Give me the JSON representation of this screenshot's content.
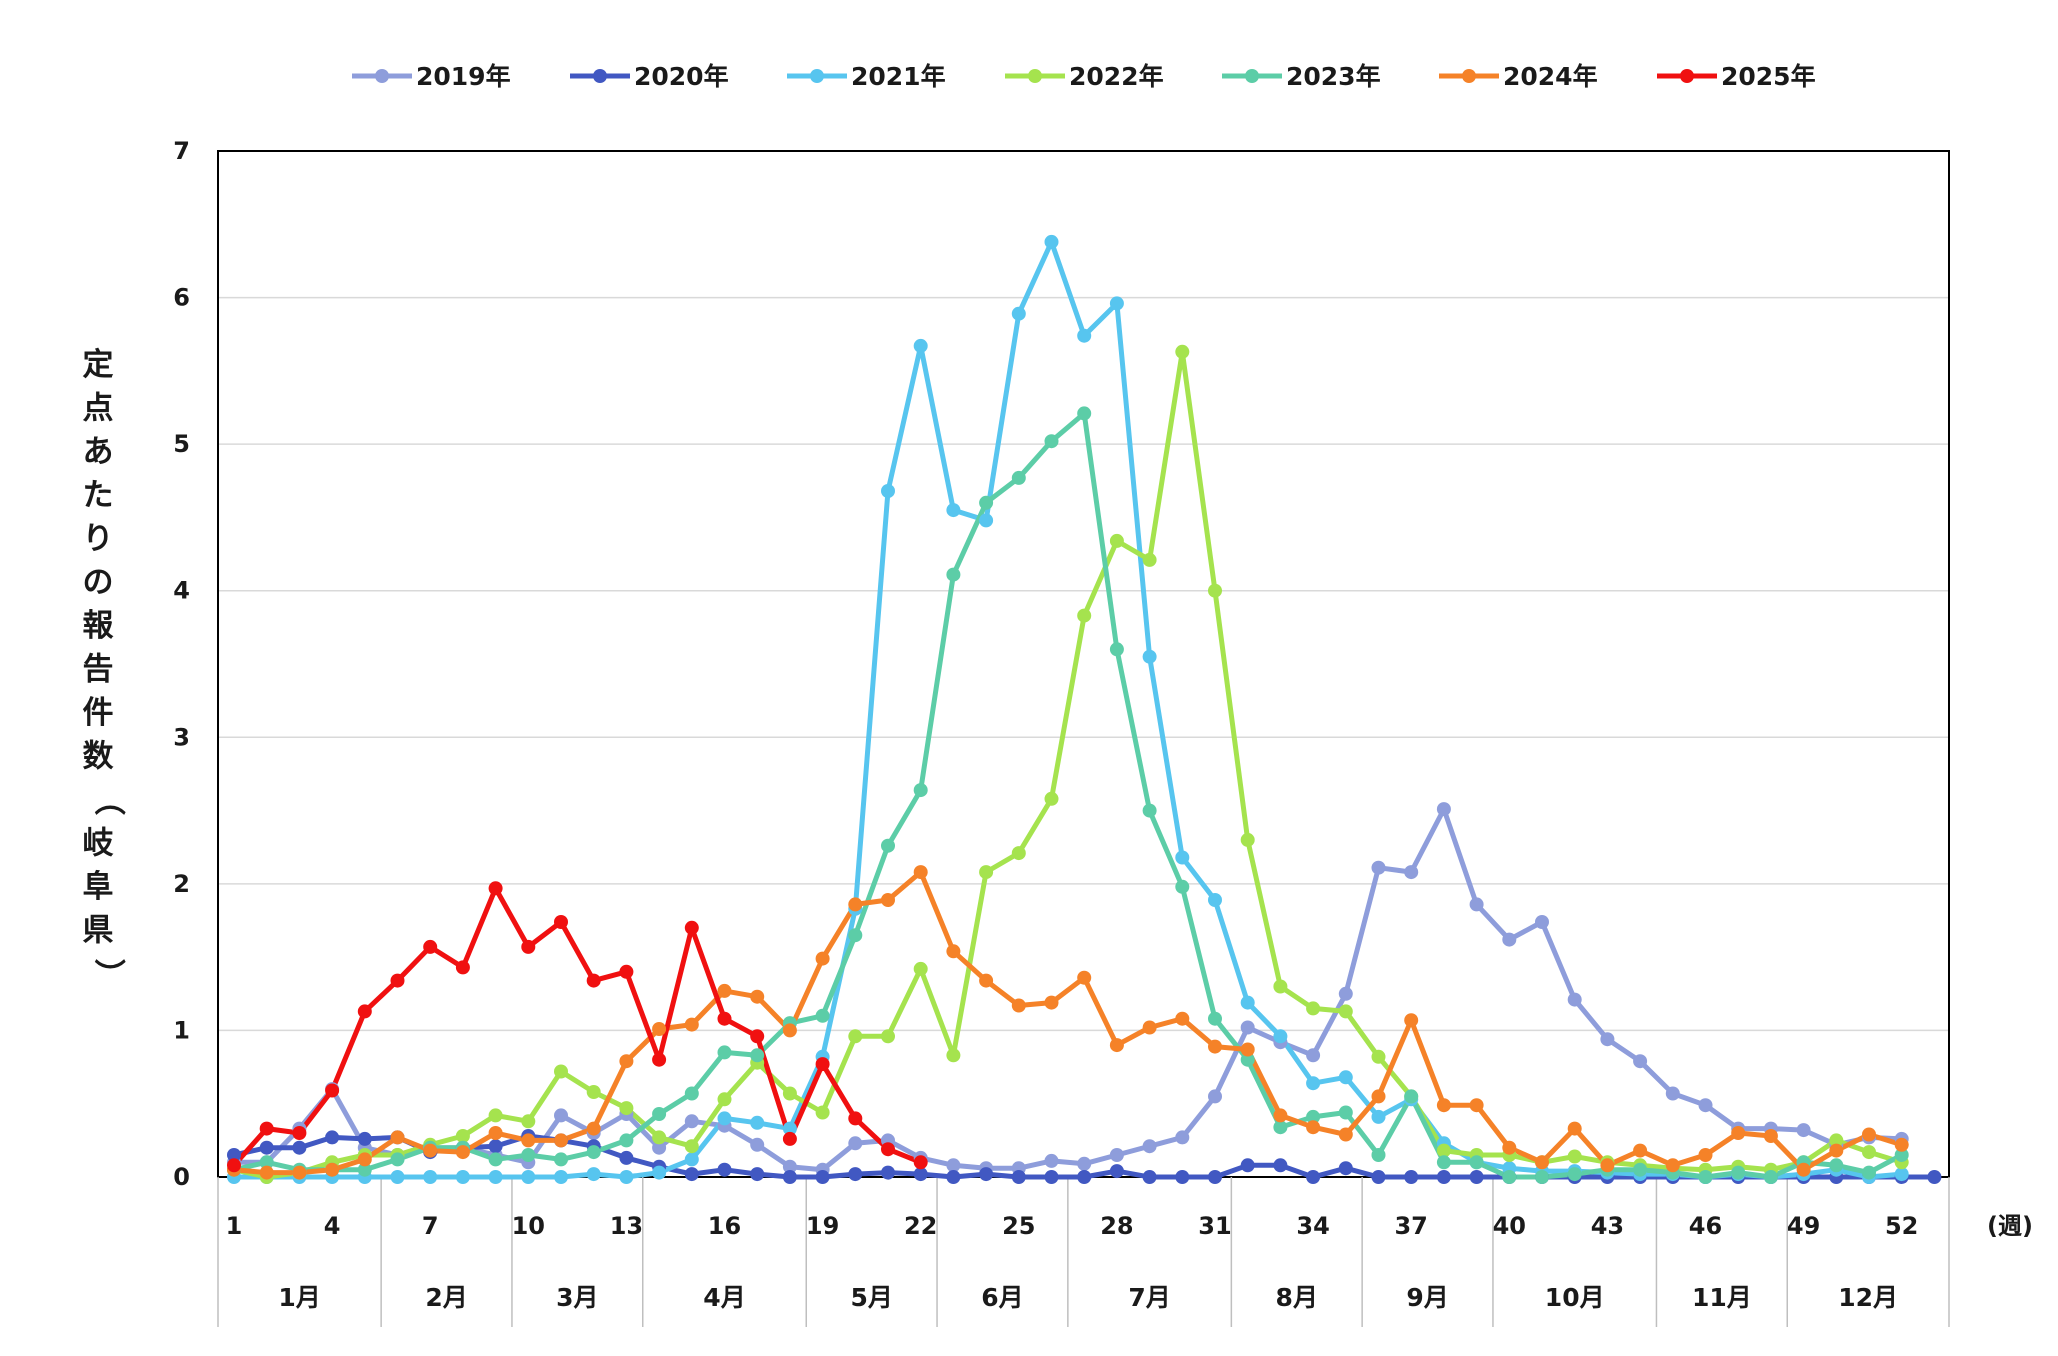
{
  "chart_data": {
    "type": "line",
    "title": "",
    "xlabel": "(週)",
    "ylabel": "定点あたりの報告件数（岐阜県）",
    "ylim": [
      0,
      7
    ],
    "yticks": [
      "0",
      "1",
      "2",
      "3",
      "4",
      "5",
      "6",
      "7"
    ],
    "xticks": [
      "1",
      "4",
      "7",
      "10",
      "13",
      "16",
      "19",
      "22",
      "25",
      "28",
      "31",
      "34",
      "37",
      "40",
      "43",
      "46",
      "49",
      "52"
    ],
    "grid": true,
    "legend_position": "top",
    "months": [
      {
        "label": "1月",
        "start": 1,
        "end": 5
      },
      {
        "label": "2月",
        "start": 6,
        "end": 9
      },
      {
        "label": "3月",
        "start": 10,
        "end": 13
      },
      {
        "label": "4月",
        "start": 14,
        "end": 18
      },
      {
        "label": "5月",
        "start": 19,
        "end": 22
      },
      {
        "label": "6月",
        "start": 23,
        "end": 26
      },
      {
        "label": "7月",
        "start": 27,
        "end": 31
      },
      {
        "label": "8月",
        "start": 32,
        "end": 35
      },
      {
        "label": "9月",
        "start": 36,
        "end": 39
      },
      {
        "label": "10月",
        "start": 40,
        "end": 44
      },
      {
        "label": "11月",
        "start": 45,
        "end": 48
      },
      {
        "label": "12月",
        "start": 49,
        "end": 53
      }
    ],
    "series": [
      {
        "name": "2019年",
        "color": "#8e9ddb",
        "x_start": 1,
        "values": [
          0.1,
          0.1,
          0.33,
          0.6,
          0.2,
          0.15,
          0.2,
          0.2,
          0.15,
          0.1,
          0.42,
          0.3,
          0.43,
          0.2,
          0.38,
          0.35,
          0.22,
          0.07,
          0.05,
          0.23,
          0.25,
          0.13,
          0.08,
          0.06,
          0.06,
          0.11,
          0.09,
          0.15,
          0.21,
          0.27,
          0.55,
          1.02,
          0.92,
          0.83,
          1.25,
          2.11,
          2.08,
          2.51,
          1.86,
          1.62,
          1.74,
          1.21,
          0.94,
          0.79,
          0.57,
          0.49,
          0.33,
          0.33,
          0.32,
          0.22,
          0.27,
          0.26
        ]
      },
      {
        "name": "2020年",
        "color": "#4158c2",
        "x_start": 1,
        "values": [
          0.15,
          0.2,
          0.2,
          0.27,
          0.26,
          0.27,
          0.17,
          0.2,
          0.21,
          0.28,
          0.25,
          0.21,
          0.13,
          0.07,
          0.02,
          0.05,
          0.02,
          0.0,
          0.0,
          0.02,
          0.03,
          0.02,
          0.0,
          0.02,
          0.0,
          0.0,
          0.0,
          0.04,
          0.0,
          0.0,
          0.0,
          0.08,
          0.08,
          0.0,
          0.06,
          0.0,
          0.0,
          0.0,
          0.0,
          0.0,
          0.0,
          0.0,
          0.0,
          0.0,
          0.0,
          0.0,
          0.0,
          0.0,
          0.0,
          0.0,
          0.0,
          0.0,
          0.0
        ]
      },
      {
        "name": "2021年",
        "color": "#57c5ef",
        "x_start": 1,
        "values": [
          0.0,
          0.0,
          0.0,
          0.0,
          0.0,
          0.0,
          0.0,
          0.0,
          0.0,
          0.0,
          0.0,
          0.02,
          0.0,
          0.03,
          0.12,
          0.4,
          0.37,
          0.33,
          0.82,
          1.83,
          4.68,
          5.67,
          4.55,
          4.48,
          5.89,
          6.38,
          5.74,
          5.96,
          3.55,
          2.18,
          1.89,
          1.19,
          0.96,
          0.64,
          0.68,
          0.41,
          0.53,
          0.23,
          0.1,
          0.06,
          0.04,
          0.04,
          0.03,
          0.02,
          0.02,
          0.0,
          0.02,
          0.0,
          0.02,
          0.05,
          0.0,
          0.02
        ]
      },
      {
        "name": "2022年",
        "color": "#a5e34e",
        "x_start": 1,
        "values": [
          0.05,
          0.0,
          0.03,
          0.1,
          0.15,
          0.15,
          0.22,
          0.28,
          0.42,
          0.38,
          0.72,
          0.58,
          0.47,
          0.27,
          0.21,
          0.53,
          0.78,
          0.57,
          0.44,
          0.96,
          0.96,
          1.42,
          0.83,
          2.08,
          2.21,
          2.58,
          3.83,
          4.34,
          4.21,
          5.63,
          4.0,
          2.3,
          1.3,
          1.15,
          1.13,
          0.82,
          0.55,
          0.18,
          0.15,
          0.15,
          0.1,
          0.14,
          0.1,
          0.08,
          0.06,
          0.05,
          0.07,
          0.05,
          0.1,
          0.25,
          0.17,
          0.1
        ]
      },
      {
        "name": "2023年",
        "color": "#5ccda7",
        "x_start": 1,
        "values": [
          0.05,
          0.1,
          0.05,
          0.05,
          0.05,
          0.12,
          0.2,
          0.2,
          0.12,
          0.15,
          0.12,
          0.17,
          0.25,
          0.43,
          0.57,
          0.85,
          0.83,
          1.05,
          1.1,
          1.65,
          2.26,
          2.64,
          4.11,
          4.6,
          4.77,
          5.02,
          5.21,
          3.6,
          2.5,
          1.98,
          1.08,
          0.8,
          0.34,
          0.41,
          0.44,
          0.15,
          0.55,
          0.1,
          0.1,
          0.0,
          0.0,
          0.02,
          0.05,
          0.05,
          0.03,
          0.0,
          0.03,
          0.0,
          0.1,
          0.08,
          0.03,
          0.15
        ]
      },
      {
        "name": "2024年",
        "color": "#f58228",
        "x_start": 1,
        "values": [
          0.05,
          0.03,
          0.03,
          0.05,
          0.12,
          0.27,
          0.18,
          0.17,
          0.3,
          0.25,
          0.25,
          0.33,
          0.79,
          1.01,
          1.04,
          1.27,
          1.23,
          1.0,
          1.49,
          1.86,
          1.89,
          2.08,
          1.54,
          1.34,
          1.17,
          1.19,
          1.36,
          0.9,
          1.02,
          1.08,
          0.89,
          0.87,
          0.42,
          0.34,
          0.29,
          0.55,
          1.07,
          0.49,
          0.49,
          0.2,
          0.1,
          0.33,
          0.08,
          0.18,
          0.08,
          0.15,
          0.3,
          0.28,
          0.05,
          0.18,
          0.29,
          0.22
        ]
      },
      {
        "name": "2025年",
        "color": "#f01010",
        "x_start": 1,
        "values": [
          0.08,
          0.33,
          0.3,
          0.59,
          1.13,
          1.34,
          1.57,
          1.43,
          1.97,
          1.57,
          1.74,
          1.34,
          1.4,
          0.8,
          1.7,
          1.08,
          0.96,
          0.26,
          0.77,
          0.4,
          0.19,
          0.1
        ]
      }
    ]
  }
}
